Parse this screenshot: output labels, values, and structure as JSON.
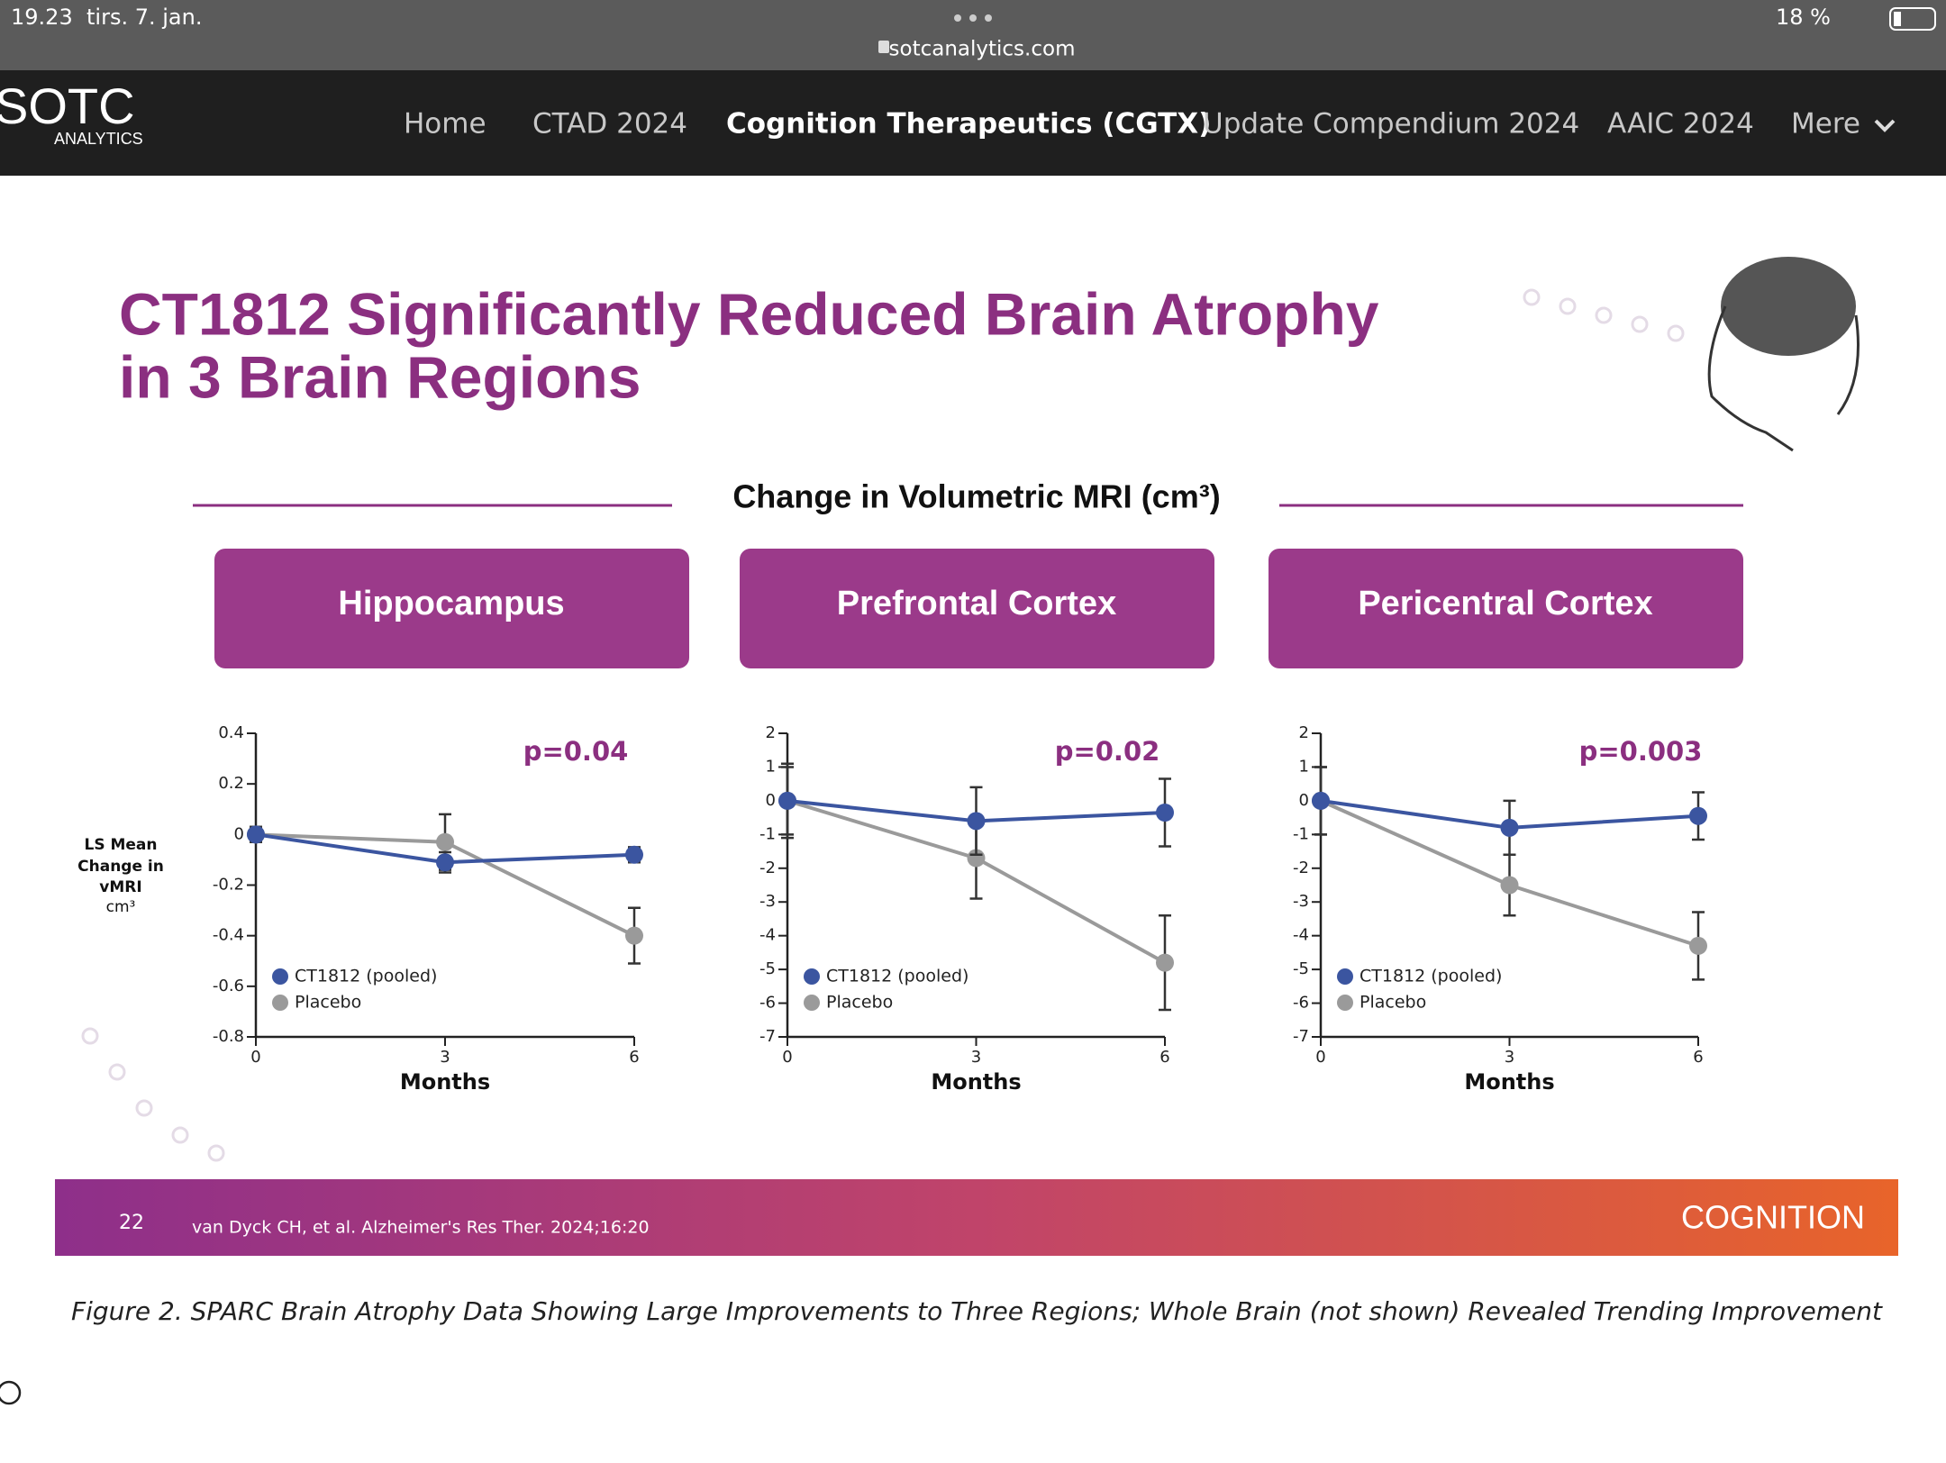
{
  "status_bar": {
    "time": "19.23",
    "date": "tirs. 7. jan.",
    "url": "sotcanalytics.com",
    "battery": "18 %"
  },
  "nav": {
    "logo": "SOTC",
    "logo_sub": "ANALYTICS",
    "items": [
      "Home",
      "CTAD 2024",
      "Cognition Therapeutics (CGTX)",
      "Update Compendium 2024",
      "AAIC 2024",
      "Mere"
    ]
  },
  "slide": {
    "title_lines": [
      "CT1812 Significantly Reduced Brain Atrophy",
      "in 3 Brain Regions"
    ],
    "heading": "Change in Volumetric MRI (cm³)",
    "y_axis_label": [
      "LS Mean",
      "Change in",
      "vMRI",
      "cm³"
    ],
    "page_number": "22",
    "citation": "van Dyck CH, et al. Alzheimer's Res Ther. 2024;16:20",
    "brand": "COGNITION"
  },
  "chart_data": [
    {
      "type": "line",
      "title": "Hippocampus",
      "annotation": "p=0.04",
      "xlabel": "Months",
      "x": [
        0,
        3,
        6
      ],
      "xlim": [
        0,
        6
      ],
      "xticks": [
        0,
        3,
        6
      ],
      "ylim": [
        -0.8,
        0.4
      ],
      "yticks": [
        -0.8,
        -0.6,
        -0.4,
        -0.2,
        0,
        0.2,
        0.4
      ],
      "series": [
        {
          "name": "CT1812 (pooled)",
          "color": "#3b55a0",
          "values": [
            0,
            -0.11,
            -0.08
          ],
          "errors": [
            0.03,
            0.04,
            0.03
          ]
        },
        {
          "name": "Placebo",
          "color": "#9a9a9a",
          "values": [
            0,
            -0.03,
            -0.4
          ],
          "errors": [
            0.03,
            0.11,
            0.11
          ]
        }
      ]
    },
    {
      "type": "line",
      "title": "Prefrontal Cortex",
      "annotation": "p=0.02",
      "xlabel": "Months",
      "x": [
        0,
        3,
        6
      ],
      "xlim": [
        0,
        6
      ],
      "xticks": [
        0,
        3,
        6
      ],
      "ylim": [
        -7,
        2
      ],
      "yticks": [
        -7,
        -6,
        -5,
        -4,
        -3,
        -2,
        -1,
        0,
        1,
        2
      ],
      "series": [
        {
          "name": "CT1812 (pooled)",
          "color": "#3b55a0",
          "values": [
            0,
            -0.6,
            -0.35
          ],
          "errors": [
            1.1,
            1.0,
            1.0
          ]
        },
        {
          "name": "Placebo",
          "color": "#9a9a9a",
          "values": [
            0,
            -1.7,
            -4.8
          ],
          "errors": [
            1.0,
            1.2,
            1.4
          ]
        }
      ]
    },
    {
      "type": "line",
      "title": "Pericentral Cortex",
      "annotation": "p=0.003",
      "xlabel": "Months",
      "x": [
        0,
        3,
        6
      ],
      "xlim": [
        0,
        6
      ],
      "xticks": [
        0,
        3,
        6
      ],
      "ylim": [
        -7,
        2
      ],
      "yticks": [
        -7,
        -6,
        -5,
        -4,
        -3,
        -2,
        -1,
        0,
        1,
        2
      ],
      "series": [
        {
          "name": "CT1812 (pooled)",
          "color": "#3b55a0",
          "values": [
            0,
            -0.8,
            -0.45
          ],
          "errors": [
            1.0,
            0.8,
            0.7
          ]
        },
        {
          "name": "Placebo",
          "color": "#9a9a9a",
          "values": [
            0,
            -2.5,
            -4.3
          ],
          "errors": [
            1.0,
            0.9,
            1.0
          ]
        }
      ]
    }
  ],
  "caption": "Figure 2. SPARC Brain Atrophy Data Showing Large Improvements to Three Regions; Whole Brain (not shown) Revealed Trending Improvement"
}
